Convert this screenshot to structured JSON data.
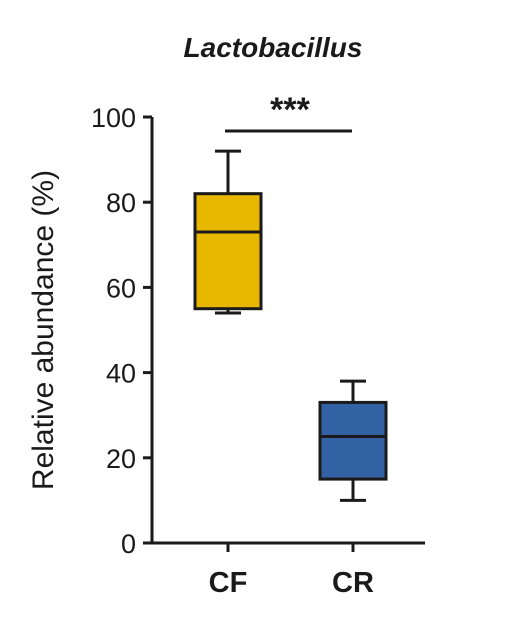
{
  "chart_data": {
    "type": "box",
    "title": "Lactobacillus",
    "xlabel": "",
    "ylabel": "Relative abundance (%)",
    "ylim": [
      0,
      100
    ],
    "yticks": [
      "0",
      "20",
      "40",
      "60",
      "80",
      "100"
    ],
    "grid": false,
    "categories": [
      "CF",
      "CR"
    ],
    "boxes": [
      {
        "category": "CF",
        "whisker_low": 54,
        "q1": 55,
        "median": 73,
        "q3": 82,
        "whisker_high": 92,
        "color": "#E8B800"
      },
      {
        "category": "CR",
        "whisker_low": 10,
        "q1": 15,
        "median": 25,
        "q3": 33,
        "whisker_high": 38,
        "color": "#3362A4"
      }
    ],
    "significance": {
      "between": [
        "CF",
        "CR"
      ],
      "label": "***"
    }
  }
}
